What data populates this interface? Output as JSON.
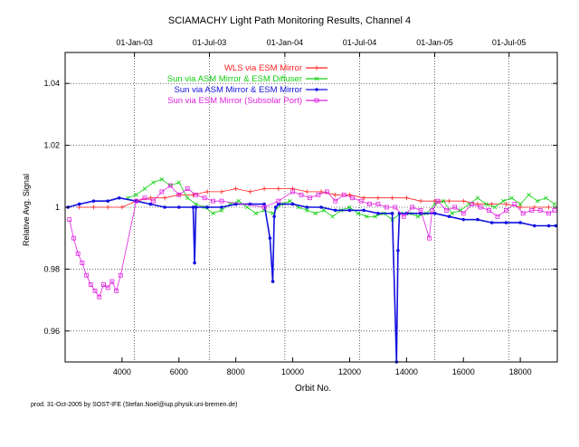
{
  "chart_data": {
    "type": "line",
    "title": "SCIAMACHY Light Path Monitoring Results, Channel 4",
    "xlabel": "Orbit No.",
    "ylabel": "Relative Avg. Signal",
    "xlim": [
      2000,
      19300
    ],
    "ylim": [
      0.95,
      1.05
    ],
    "x_ticks": [
      4000,
      6000,
      8000,
      10000,
      12000,
      14000,
      16000,
      18000
    ],
    "y_ticks": [
      0.96,
      0.98,
      1.0,
      1.02,
      1.04
    ],
    "y_tick_labels": [
      "0.96",
      "0.98",
      "1",
      "1.02",
      "1.04"
    ],
    "top_axis": {
      "ticks": [
        {
          "orbit": 4437,
          "label": "01-Jan-03"
        },
        {
          "orbit": 7072,
          "label": "01-Jul-03"
        },
        {
          "orbit": 9724,
          "label": "01-Jan-04"
        },
        {
          "orbit": 12350,
          "label": "01-Jul-04"
        },
        {
          "orbit": 14992,
          "label": "01-Jan-05"
        },
        {
          "orbit": 17605,
          "label": "01-Jul-05"
        }
      ]
    },
    "grid": true,
    "legend_position": "top-center",
    "series": [
      {
        "name": "WLS via ESM Mirror",
        "color": "#ff2020",
        "marker": "plus",
        "x": [
          2500,
          3000,
          3500,
          4000,
          4500,
          5000,
          5500,
          6000,
          6500,
          7000,
          7500,
          8000,
          8500,
          9000,
          9500,
          10000,
          10500,
          11000,
          11500,
          12000,
          12500,
          13000,
          13500,
          14000,
          14500,
          15000,
          15500,
          16000,
          16500,
          17000,
          17500,
          18000,
          18500,
          19000
        ],
        "y": [
          1.0,
          1.0,
          1.0,
          1.0,
          1.002,
          1.003,
          1.003,
          1.004,
          1.004,
          1.005,
          1.005,
          1.006,
          1.005,
          1.006,
          1.006,
          1.006,
          1.005,
          1.005,
          1.004,
          1.004,
          1.003,
          1.003,
          1.003,
          1.003,
          1.002,
          1.002,
          1.002,
          1.002,
          1.001,
          1.001,
          1.001,
          1.0,
          1.0,
          1.0
        ]
      },
      {
        "name": "Sun via ASM Mirror & ESM Diffuser",
        "color": "#10d010",
        "marker": "cross",
        "x": [
          4200,
          4500,
          4800,
          5100,
          5400,
          5700,
          6000,
          6300,
          6600,
          6900,
          7200,
          7500,
          7800,
          8100,
          8400,
          8700,
          9000,
          9300,
          9600,
          9900,
          10200,
          10500,
          10800,
          11100,
          11400,
          11700,
          12000,
          12300,
          12600,
          12900,
          13200,
          13500,
          13800,
          14100,
          14400,
          14700,
          15000,
          15300,
          15600,
          15900,
          16200,
          16500,
          16800,
          17100,
          17400,
          17700,
          18000,
          18300,
          18600,
          18900,
          19200
        ],
        "y": [
          1.003,
          1.004,
          1.006,
          1.008,
          1.009,
          1.007,
          1.008,
          1.003,
          1.001,
          1.0,
          0.998,
          0.999,
          1.001,
          1.002,
          1.0,
          0.998,
          0.999,
          0.998,
          1.001,
          1.002,
          1.0,
          0.999,
          0.998,
          0.999,
          0.997,
          0.999,
          1.0,
          0.998,
          0.997,
          0.997,
          0.998,
          0.996,
          0.998,
          0.998,
          0.997,
          0.998,
          1.001,
          1.002,
          0.998,
          0.999,
          1.001,
          1.003,
          1.001,
          1.0,
          1.002,
          1.003,
          1.001,
          1.004,
          1.002,
          1.003,
          1.001
        ]
      },
      {
        "name": "Sun via ASM Mirror & ESM Mirror",
        "color": "#1010e0",
        "marker": "star",
        "x": [
          2100,
          2500,
          3000,
          3500,
          3900,
          4500,
          5000,
          5500,
          6000,
          6500,
          6550,
          6600,
          7000,
          7500,
          8000,
          8500,
          9000,
          9200,
          9300,
          9350,
          9400,
          9500,
          10000,
          10500,
          11000,
          11500,
          12000,
          12500,
          13000,
          13500,
          13650,
          13700,
          13750,
          14000,
          14500,
          15000,
          15500,
          16000,
          16500,
          17000,
          17500,
          18000,
          18500,
          19000,
          19250
        ],
        "y": [
          1.0,
          1.001,
          1.002,
          1.002,
          1.003,
          1.002,
          1.001,
          1.0,
          1.0,
          1.0,
          0.982,
          1.0,
          1.0,
          1.0,
          1.001,
          1.001,
          1.001,
          0.99,
          0.976,
          0.997,
          1.0,
          1.001,
          1.001,
          1.0,
          1.0,
          0.999,
          0.999,
          0.999,
          0.998,
          0.998,
          0.95,
          0.986,
          0.998,
          0.998,
          0.998,
          0.998,
          0.997,
          0.996,
          0.996,
          0.995,
          0.995,
          0.995,
          0.994,
          0.994,
          0.994
        ]
      },
      {
        "name": "Sun via ESM Mirror (Subsolar Port)",
        "color": "#e020e0",
        "marker": "square",
        "x": [
          2150,
          2300,
          2450,
          2600,
          2750,
          2900,
          3050,
          3200,
          3350,
          3500,
          3650,
          3800,
          3950,
          4500,
          4800,
          5100,
          5400,
          5700,
          6000,
          6300,
          6600,
          6900,
          7200,
          7500,
          9000,
          9500,
          10000,
          10300,
          10600,
          10900,
          11200,
          11500,
          11800,
          12100,
          12400,
          12700,
          13000,
          13300,
          13600,
          13900,
          14200,
          14500,
          14800,
          14900,
          15100,
          15400,
          15700,
          16000,
          16300,
          16600,
          16900,
          17200,
          17500,
          17800,
          18100,
          18400,
          18700,
          19000,
          19200
        ],
        "y": [
          0.996,
          0.99,
          0.985,
          0.982,
          0.978,
          0.975,
          0.973,
          0.971,
          0.975,
          0.974,
          0.976,
          0.973,
          0.978,
          1.002,
          1.003,
          1.002,
          1.005,
          1.007,
          1.004,
          1.006,
          1.004,
          1.003,
          1.002,
          1.002,
          1.0,
          1.002,
          1.005,
          1.004,
          1.003,
          1.004,
          1.005,
          1.002,
          1.004,
          1.003,
          1.002,
          1.001,
          1.001,
          1.0,
          1.0,
          0.997,
          1.0,
          0.999,
          0.99,
          0.999,
          1.002,
          0.999,
          1.0,
          0.998,
          1.001,
          1.0,
          0.999,
          0.997,
          0.999,
          1.001,
          0.998,
          0.999,
          0.999,
          0.998,
          0.999
        ]
      }
    ]
  },
  "footer": "prod. 31-Oct-2005 by SOST-IFE (Stefan.Noel@iup.physik.uni-bremen.de)"
}
